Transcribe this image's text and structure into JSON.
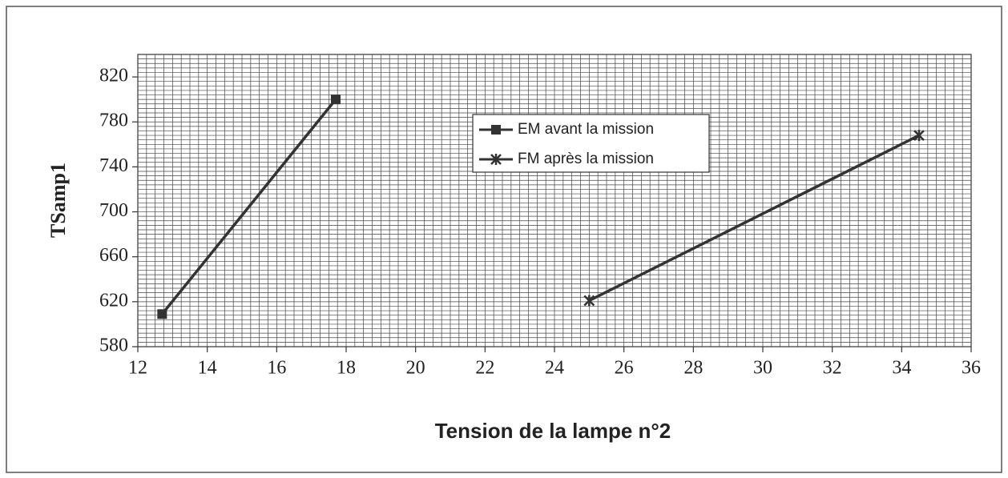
{
  "chart_data": {
    "type": "line",
    "x_label": "Tension de la lampe n°2",
    "y_label": "TSamp1",
    "xlim": [
      12,
      36
    ],
    "xticks": [
      12,
      14,
      16,
      18,
      20,
      22,
      24,
      26,
      28,
      30,
      32,
      34,
      36
    ],
    "ylim": [
      580,
      840
    ],
    "yticks": [
      580,
      620,
      660,
      700,
      740,
      780,
      820
    ],
    "grid": true,
    "series": [
      {
        "name": "EM avant la mission",
        "color": "#333333",
        "marker": "square",
        "x": [
          12.7,
          17.7
        ],
        "values": [
          609,
          800
        ]
      },
      {
        "name": "FM après la mission",
        "color": "#333333",
        "marker": "star",
        "x": [
          25,
          34.5
        ],
        "values": [
          621,
          768
        ]
      }
    ]
  }
}
